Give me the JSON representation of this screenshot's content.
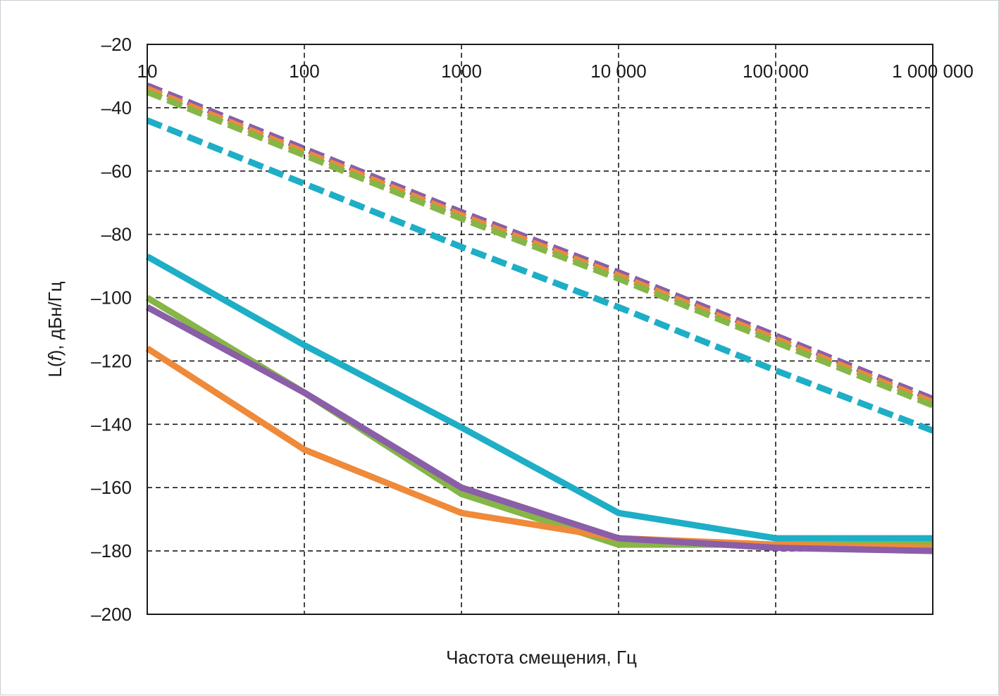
{
  "chart_data": {
    "type": "line",
    "title": "",
    "xlabel": "Частота смещения, Гц",
    "ylabel_prefix": "L(",
    "ylabel_italic": "f",
    "ylabel_suffix": "), дБн/Гц",
    "xscale": "log",
    "xlim": [
      10,
      1000000
    ],
    "ylim": [
      -200,
      -20
    ],
    "grid": true,
    "x_tick_labels": [
      "10",
      "100",
      "1000",
      "10 000",
      "100 000",
      "1 000 000"
    ],
    "y_tick_labels": [
      "–20",
      "–40",
      "–60",
      "–80",
      "–100",
      "–120",
      "–140",
      "–160",
      "–180",
      "–200"
    ],
    "x_ticks": [
      10,
      100,
      1000,
      10000,
      100000,
      1000000
    ],
    "y_ticks": [
      -20,
      -40,
      -60,
      -80,
      -100,
      -120,
      -140,
      -160,
      -180,
      -200
    ],
    "series": [
      {
        "color": "#8a5ea8",
        "style": "dashed",
        "x": [
          10,
          100,
          1000,
          10000,
          100000,
          1000000
        ],
        "y": [
          -33,
          -53,
          -73,
          -92,
          -112,
          -132
        ]
      },
      {
        "color": "#ee8a3a",
        "style": "dashed",
        "x": [
          10,
          100,
          1000,
          10000,
          100000,
          1000000
        ],
        "y": [
          -34,
          -54,
          -74,
          -93,
          -113,
          -133
        ]
      },
      {
        "color": "#86b548",
        "style": "dashed",
        "x": [
          10,
          100,
          1000,
          10000,
          100000,
          1000000
        ],
        "y": [
          -35,
          -55,
          -75,
          -94,
          -114,
          -134
        ]
      },
      {
        "color": "#1eaec6",
        "style": "dashed",
        "x": [
          10,
          100,
          1000,
          10000,
          100000,
          1000000
        ],
        "y": [
          -44,
          -64,
          -84,
          -103,
          -123,
          -142
        ]
      },
      {
        "color": "#1eaec6",
        "style": "solid",
        "x": [
          10,
          100,
          1000,
          10000,
          100000,
          1000000
        ],
        "y": [
          -87,
          -115,
          -141,
          -168,
          -176,
          -176
        ]
      },
      {
        "color": "#86b548",
        "style": "solid",
        "x": [
          10,
          100,
          1000,
          10000,
          100000,
          1000000
        ],
        "y": [
          -100,
          -130,
          -162,
          -178,
          -178,
          -178
        ]
      },
      {
        "color": "#ee8a3a",
        "style": "solid",
        "x": [
          10,
          100,
          1000,
          10000,
          100000,
          1000000
        ],
        "y": [
          -116,
          -148,
          -168,
          -176,
          -178,
          -179
        ]
      },
      {
        "color": "#8a5ea8",
        "style": "solid",
        "x": [
          10,
          100,
          1000,
          10000,
          100000,
          1000000
        ],
        "y": [
          -103,
          -130,
          -160,
          -176,
          -179,
          -180
        ]
      }
    ]
  }
}
